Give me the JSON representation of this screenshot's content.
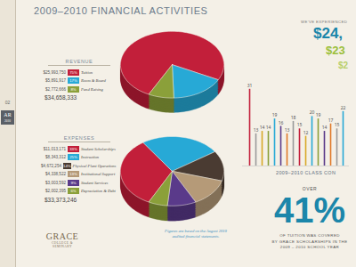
{
  "page": {
    "number": "02",
    "tab": "AR",
    "tab_year": "2010",
    "title": "2009–2010 FINANCIAL ACTIVITIES",
    "footnote": "Figures are based on the August 2010 audited financial statements.",
    "logo": "GRACE",
    "logo_sub": "COLLEGE & SEMINARY"
  },
  "chart_data": [
    {
      "type": "pie",
      "title": "REVENUE",
      "legend": "left",
      "categories": [
        "Tuition",
        "Room & Board",
        "Fund Raising"
      ],
      "values": [
        75,
        17,
        8
      ],
      "value_labels": [
        "75%",
        "17%",
        "8%"
      ],
      "amounts": [
        "$25,993,750",
        "$5,891,917",
        "$2,772,666"
      ],
      "total": "$34,658,333",
      "colors": [
        "#c21f3a",
        "#27a9d6",
        "#8ba03a"
      ]
    },
    {
      "type": "pie",
      "title": "EXPENSES",
      "legend": "left",
      "categories": [
        "Student Scholarships",
        "Instruction",
        "Physical Plant Operations",
        "Institutional Support",
        "Student Services",
        "Depreciation & Debt"
      ],
      "values": [
        33,
        25,
        14,
        13,
        9,
        6
      ],
      "value_labels": [
        "33%",
        "25%",
        "14%",
        "13%",
        "9%",
        "6%"
      ],
      "amounts": [
        "$11,013,171",
        "$8,343,312",
        "$4,672,254",
        "$4,338,522",
        "$3,003,592",
        "$2,002,395"
      ],
      "total": "$33,373,246",
      "colors": [
        "#c21f3a",
        "#27a9d6",
        "#4a3b32",
        "#b59a78",
        "#5a3a8a",
        "#8ba03a"
      ]
    },
    {
      "type": "bar",
      "title": "2009–2010 CLASS CON",
      "categories": [
        null,
        null,
        null,
        null,
        null,
        null,
        null,
        null,
        null,
        null,
        null,
        null,
        null,
        null,
        null,
        null
      ],
      "values": [
        31,
        13,
        14,
        14,
        19,
        16,
        13,
        18,
        15,
        12,
        20,
        19,
        14,
        17,
        15,
        22
      ],
      "colors": [
        "#c21f3a",
        "#9a9a9a",
        "#d8a928",
        "#8ba03a",
        "#27a9d6",
        "#5a3a8a",
        "#e07b2a",
        "#9a9a9a",
        "#c21f3a",
        "#d8a928",
        "#27a9d6",
        "#8ba03a",
        "#5a3a8a",
        "#e07b2a",
        "#9a9a9a",
        "#27a9d6"
      ],
      "ylim": [
        0,
        32
      ],
      "data_labels": true,
      "tick_labels": false
    }
  ],
  "callouts": {
    "heading": "WE'VE EXPERIENCED",
    "figures": [
      "$24,",
      "$23",
      "$2"
    ],
    "lead": "OVER",
    "figure": "41%",
    "text": [
      "OF TUITION WAS COVERED",
      "BY GRACE SCHOLARSHIPS IN THE",
      "2009 – 2010 SCHOOL YEAR"
    ]
  }
}
